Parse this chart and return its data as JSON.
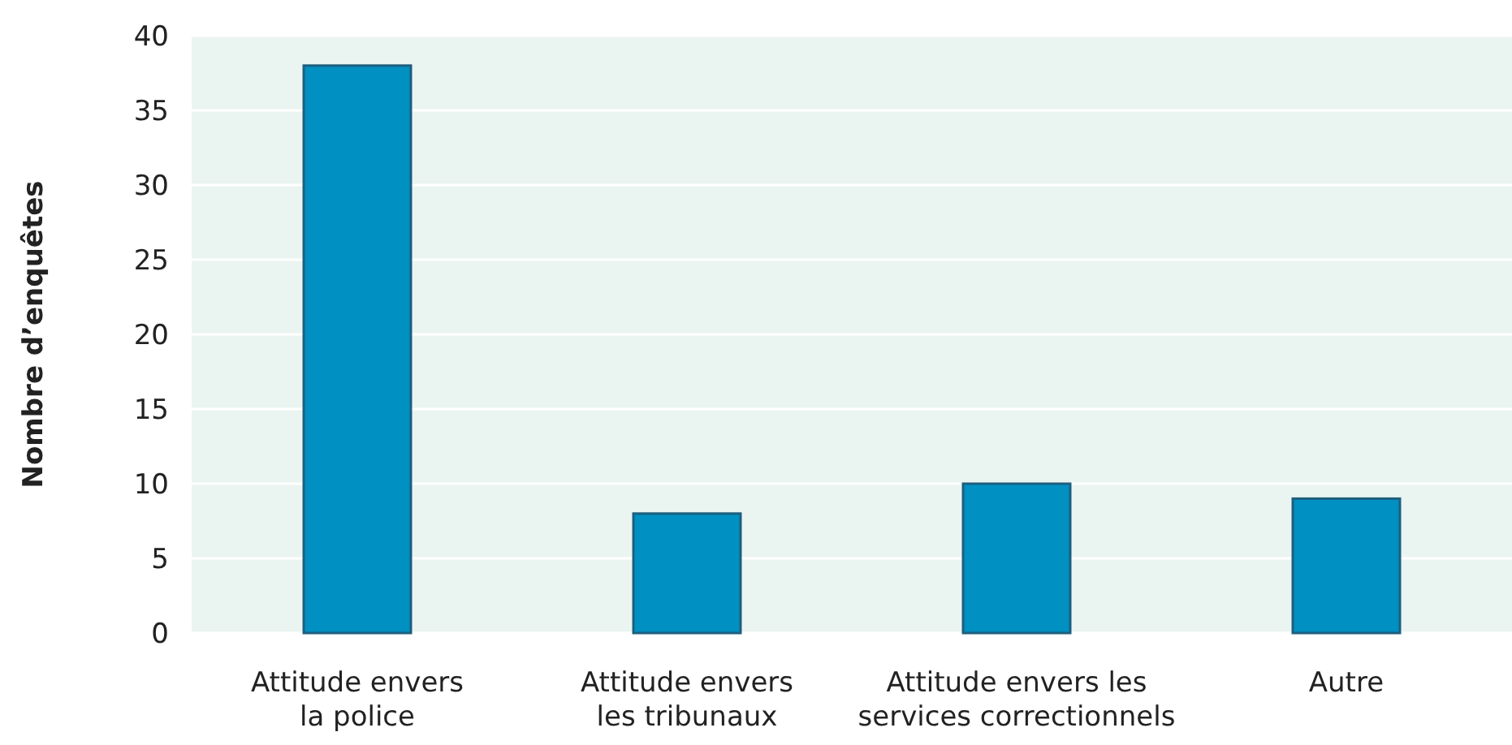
{
  "chart_data": {
    "type": "bar",
    "ylabel": "Nombre d’enquêtes",
    "categories": [
      "Attitude envers\nla police",
      "Attitude envers\nles tribunaux",
      "Attitude envers les\nservices correctionnels",
      "Autre"
    ],
    "values": [
      38,
      8,
      10,
      9
    ],
    "color": "#0090c2",
    "ylim": [
      0,
      40
    ],
    "yticks": [
      0,
      5,
      10,
      15,
      20,
      25,
      30,
      35,
      40
    ],
    "grid": "y"
  }
}
